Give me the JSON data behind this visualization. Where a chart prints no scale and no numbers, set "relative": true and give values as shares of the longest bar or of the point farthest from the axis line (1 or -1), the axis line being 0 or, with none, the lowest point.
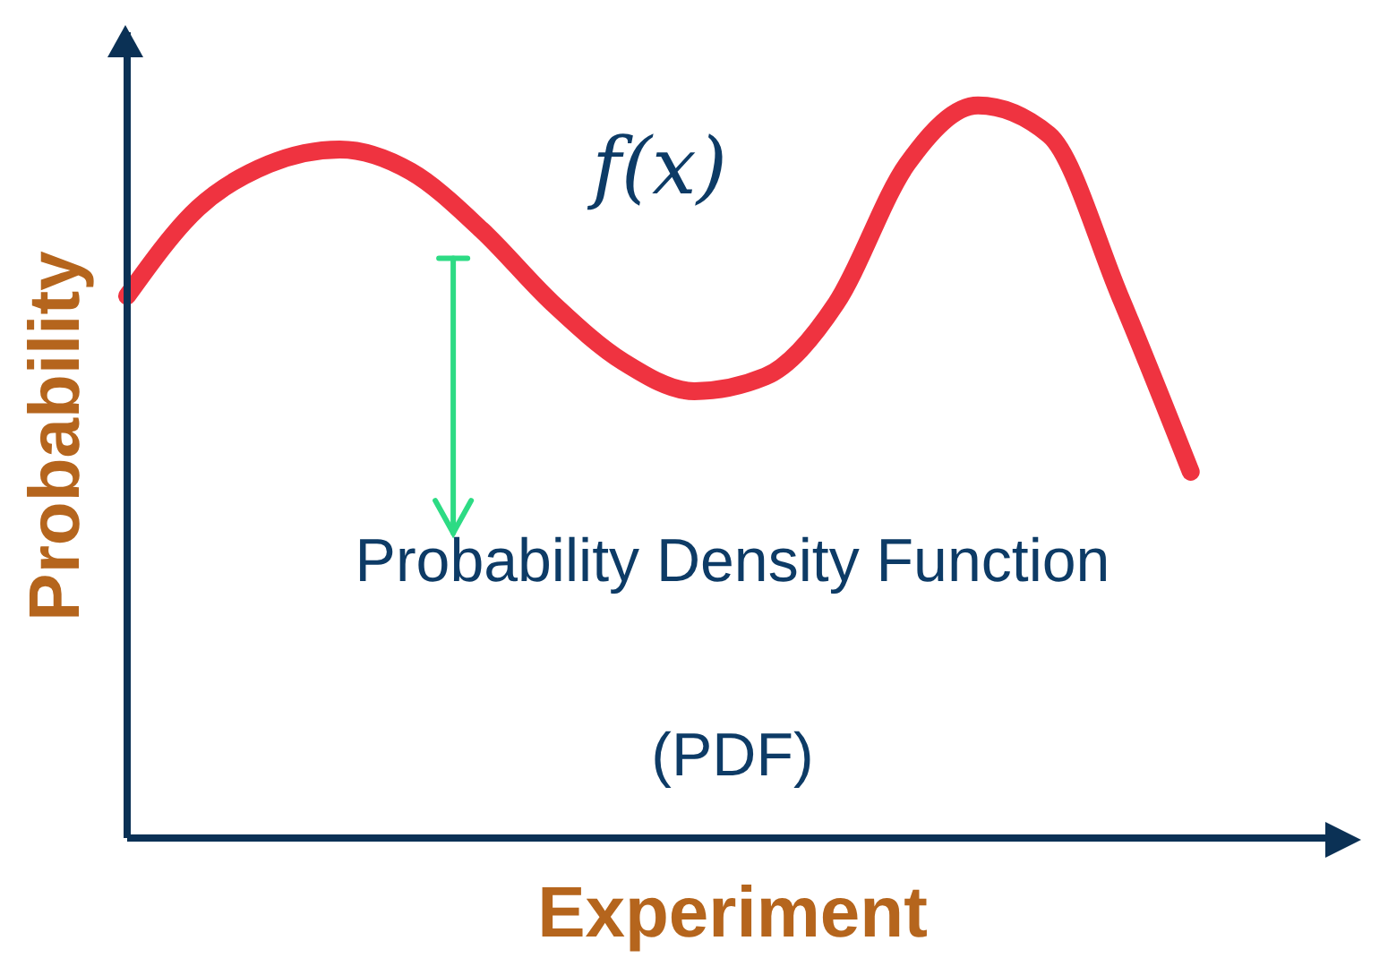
{
  "chart_data": {
    "type": "line",
    "relative": true,
    "xlabel": "Experiment",
    "ylabel": "Probability",
    "annotations": [
      "f(x)",
      "Probability Density Function",
      "(PDF)"
    ],
    "categories": [
      null,
      null,
      null,
      null,
      null,
      null,
      null,
      null,
      null,
      null,
      null,
      null,
      null,
      null,
      null,
      null
    ],
    "series": [
      {
        "color": "#ef3340",
        "values": [
          0.74,
          0.86,
          0.92,
          0.94,
          0.91,
          0.83,
          0.73,
          0.65,
          0.61,
          0.63,
          0.73,
          0.92,
          1,
          0.96,
          0.74,
          0.5
        ]
      }
    ],
    "grid": false,
    "legend": false,
    "marker": "none",
    "line_style": "solid"
  }
}
